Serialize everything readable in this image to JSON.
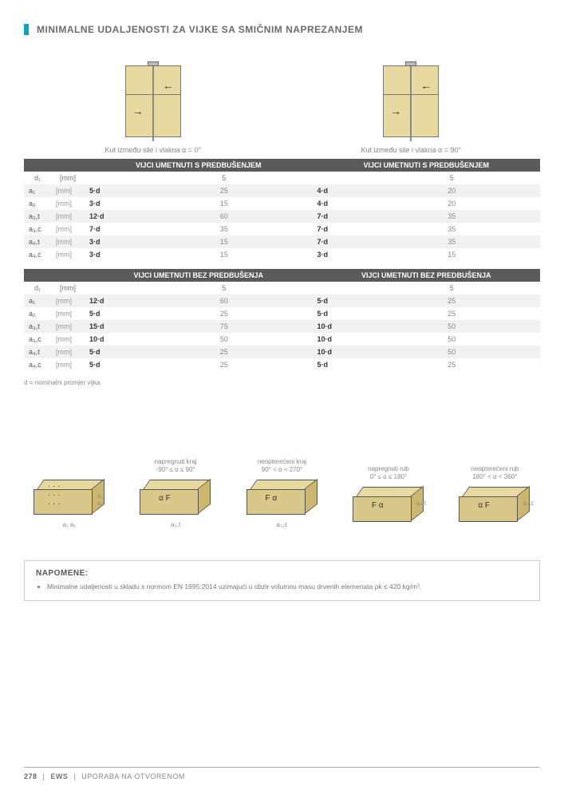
{
  "title": "MINIMALNE UDALJENOSTI ZA VIJKE SA SMIČNIM NAPREZANJEM",
  "captions": {
    "left": "Kut između sile i vlakna α = 0°",
    "right": "Kut između sile i vlakna α = 90°"
  },
  "colors": {
    "accent": "#00aaba",
    "header_bg": "#5a5a5a",
    "row_alt": "#f1f1f1",
    "wood": "#e8d9a0"
  },
  "table1": {
    "headerLeft": "VIJCI UMETNUTI S PREDBUŠENJEM",
    "headerRight": "VIJCI UMETNUTI S PREDBUŠENJEM",
    "subRow": {
      "sym": "d₁",
      "unit": "[mm]",
      "valL": "5",
      "valR": "5"
    },
    "rows": [
      {
        "sym": "a₁",
        "unit": "[mm]",
        "multL": "5·d",
        "valL": "25",
        "multR": "4·d",
        "valR": "20"
      },
      {
        "sym": "a₂",
        "unit": "[mm]",
        "multL": "3·d",
        "valL": "15",
        "multR": "4·d",
        "valR": "20"
      },
      {
        "sym": "a₃,t",
        "unit": "[mm]",
        "multL": "12·d",
        "valL": "60",
        "multR": "7·d",
        "valR": "35"
      },
      {
        "sym": "a₃,c",
        "unit": "[mm]",
        "multL": "7·d",
        "valL": "35",
        "multR": "7·d",
        "valR": "35"
      },
      {
        "sym": "a₄,t",
        "unit": "[mm]",
        "multL": "3·d",
        "valL": "15",
        "multR": "7·d",
        "valR": "35"
      },
      {
        "sym": "a₄,c",
        "unit": "[mm]",
        "multL": "3·d",
        "valL": "15",
        "multR": "3·d",
        "valR": "15"
      }
    ]
  },
  "table2": {
    "headerLeft": "VIJCI UMETNUTI BEZ PREDBUŠENJA",
    "headerRight": "VIJCI UMETNUTI BEZ PREDBUŠENJA",
    "subRow": {
      "sym": "d₁",
      "unit": "[mm]",
      "valL": "5",
      "valR": "5"
    },
    "rows": [
      {
        "sym": "a₁",
        "unit": "[mm]",
        "multL": "12·d",
        "valL": "60",
        "multR": "5·d",
        "valR": "25"
      },
      {
        "sym": "a₂",
        "unit": "[mm]",
        "multL": "5·d",
        "valL": "25",
        "multR": "5·d",
        "valR": "25"
      },
      {
        "sym": "a₃,t",
        "unit": "[mm]",
        "multL": "15·d",
        "valL": "75",
        "multR": "10·d",
        "valR": "50"
      },
      {
        "sym": "a₃,c",
        "unit": "[mm]",
        "multL": "10·d",
        "valL": "50",
        "multR": "10·d",
        "valR": "50"
      },
      {
        "sym": "a₄,t",
        "unit": "[mm]",
        "multL": "5·d",
        "valL": "25",
        "multR": "10·d",
        "valR": "50"
      },
      {
        "sym": "a₄,c",
        "unit": "[mm]",
        "multL": "5·d",
        "valL": "25",
        "multR": "5·d",
        "valR": "25"
      }
    ]
  },
  "note_d": "d = nominalni promjer vijka",
  "diagrams": [
    {
      "title": "",
      "sub": "",
      "bottom": "a₁  a₁",
      "face": "···\n···\n···",
      "arrows": "",
      "right": "a₂\na₂"
    },
    {
      "title": "napregnuti kraj",
      "sub": "-90° ≤ α ≤ 90°",
      "bottom": "a₃,t",
      "arrows": "α  F"
    },
    {
      "title": "neopterećeni kraj",
      "sub": "90° < α < 270°",
      "bottom": "a₃,c",
      "arrows": "F  α"
    },
    {
      "title": "napregnuti rub",
      "sub": "0° ≤ α ≤ 180°",
      "bottom": "",
      "arrows": "F  α",
      "right": "a₄,t"
    },
    {
      "title": "neopterećeni rub",
      "sub": "180° < α < 360°",
      "bottom": "",
      "arrows": "α  F",
      "right": "a₄,c"
    }
  ],
  "napomene": {
    "heading": "NAPOMENE:",
    "items": [
      "Minimalne udaljenosti u skladu s normom EN 1995:2014 uzimajući u obzir volumnu masu drvenih elemenata ρk ≤ 420 kg/m³."
    ]
  },
  "footer": {
    "page": "278",
    "product": "EWS",
    "section": "UPORABA NA OTVORENOM"
  }
}
